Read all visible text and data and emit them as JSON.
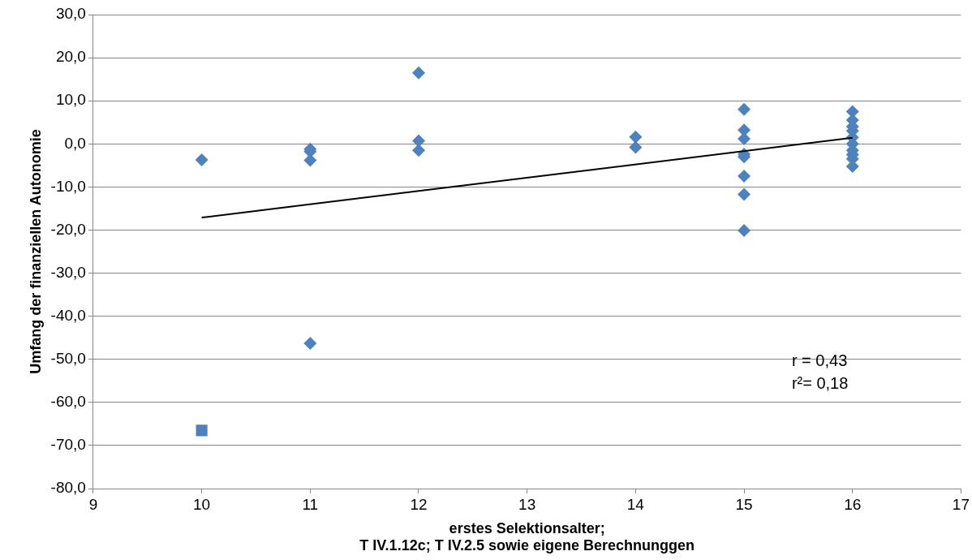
{
  "chart_data": {
    "type": "scatter",
    "xlabel": "erstes Selektionsalter;\nT IV.1.12c; T IV.2.5 sowie eigene Berechnunggen",
    "ylabel": "Umfang der finanziellen Autonomie",
    "xlim": [
      9,
      17
    ],
    "xticks": [
      9,
      10,
      11,
      12,
      13,
      14,
      15,
      16,
      17
    ],
    "ylim": [
      -80,
      30
    ],
    "yticks": [
      {
        "value": -80,
        "label": "-80,0"
      },
      {
        "value": -70,
        "label": "-70,0"
      },
      {
        "value": -60,
        "label": "-60,0"
      },
      {
        "value": -50,
        "label": "-50,0"
      },
      {
        "value": -40,
        "label": "-40,0"
      },
      {
        "value": -30,
        "label": "-30,0"
      },
      {
        "value": -20,
        "label": "-20,0"
      },
      {
        "value": -10,
        "label": "-10,0"
      },
      {
        "value": 0,
        "label": "0,0"
      },
      {
        "value": 10,
        "label": "10,0"
      },
      {
        "value": 20,
        "label": "20,0"
      },
      {
        "value": 30,
        "label": "30,0"
      }
    ],
    "grid": "y",
    "legend": false,
    "marker": "diamond",
    "annotations": [
      "r = 0,43",
      "r²= 0,18"
    ],
    "series": [
      {
        "color": "#4f81bd",
        "x": [
          10,
          11,
          11,
          11,
          11,
          12,
          12,
          12,
          14,
          14,
          15,
          15,
          15,
          15,
          15,
          15,
          15,
          15,
          16,
          16,
          16,
          16,
          16,
          16,
          16,
          16,
          16,
          16
        ],
        "values": [
          -3.7,
          -1.2,
          -1.8,
          -3.8,
          -46.3,
          16.5,
          0.7,
          -1.5,
          1.6,
          -0.8,
          8.0,
          3.2,
          1.2,
          -2.4,
          -3.0,
          -7.5,
          -11.7,
          -20.1,
          7.5,
          5.5,
          4.0,
          3.0,
          1.5,
          0.0,
          -1.5,
          -2.5,
          -3.5,
          -5.2
        ]
      },
      {
        "color": "#4f81bd",
        "marker": "square",
        "x": [
          10
        ],
        "values": [
          -66.5
        ]
      },
      {
        "type": "line",
        "color": "#000000",
        "marker": "none",
        "x": [
          10,
          16
        ],
        "values": [
          -17.1,
          1.4
        ]
      }
    ]
  }
}
